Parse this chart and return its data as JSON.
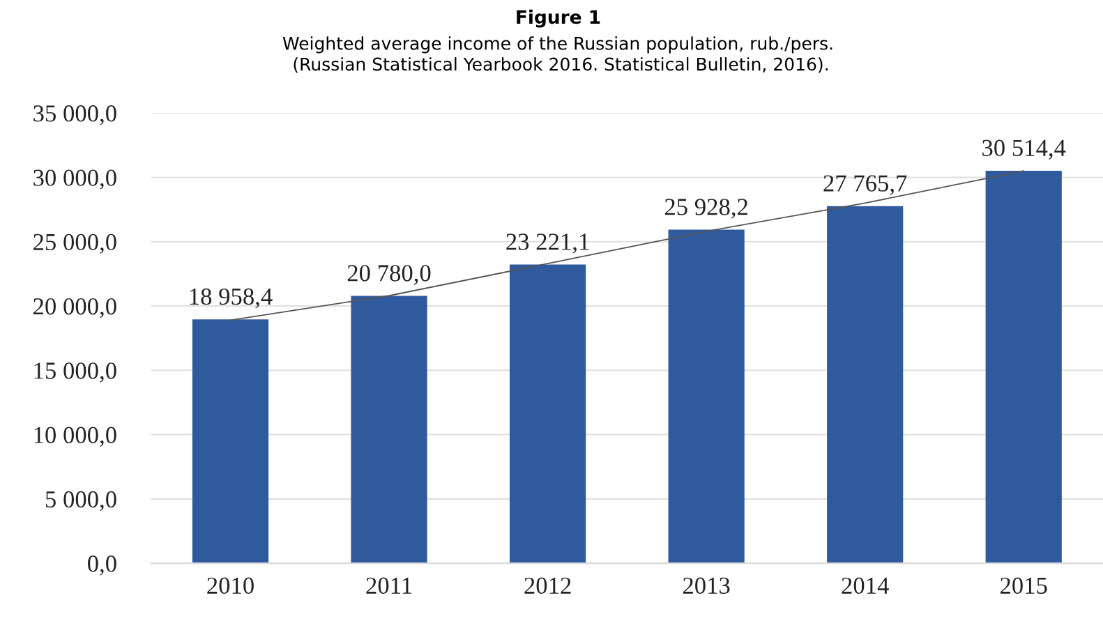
{
  "chart_data": {
    "type": "bar",
    "title": "Figure 1",
    "subtitle": "Weighted average income of the Russian population, rub./pers.\n (Russian Statistical Yearbook 2016. Statistical Bulletin, 2016).",
    "categories": [
      "2010",
      "2011",
      "2012",
      "2013",
      "2014",
      "2015"
    ],
    "series": [
      {
        "color": "#2f5a9e",
        "values": [
          18958.4,
          20780.0,
          23221.1,
          25928.2,
          27765.7,
          30514.4
        ],
        "value_labels": [
          "18 958,4",
          "20 780,0",
          "23 221,1",
          "25 928,2",
          "27 765,7",
          "30 514,4"
        ]
      },
      {
        "type": "line",
        "color": "#555555",
        "values": [
          18900,
          20800,
          23300,
          25800,
          28000,
          30500
        ]
      }
    ],
    "ylim": [
      0,
      35000
    ],
    "yticks": [
      {
        "value": 0,
        "label": "0,0"
      },
      {
        "value": 5000,
        "label": "5 000,0"
      },
      {
        "value": 10000,
        "label": "10 000,0"
      },
      {
        "value": 15000,
        "label": "15 000,0"
      },
      {
        "value": 20000,
        "label": "20 000,0"
      },
      {
        "value": 25000,
        "label": "25 000,0"
      },
      {
        "value": 30000,
        "label": "30 000,0"
      },
      {
        "value": 35000,
        "label": "35 000,0"
      }
    ],
    "grid": "y",
    "legend": false
  }
}
